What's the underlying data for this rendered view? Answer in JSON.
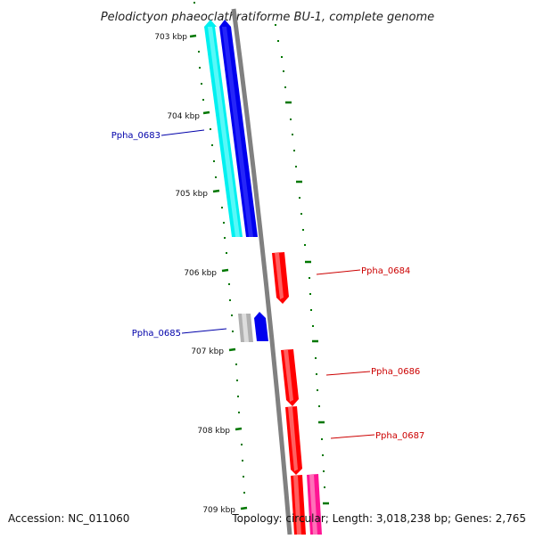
{
  "title": "Pelodictyon phaeoclathratiforme BU-1, complete genome",
  "footer": {
    "accession": "Accession: NC_011060",
    "topology": "Topology: circular; Length: 3,018,238 bp; Genes: 2,765"
  },
  "ticks": [
    "703 kbp",
    "704 kbp",
    "705 kbp",
    "706 kbp",
    "707 kbp",
    "708 kbp",
    "709 kbp"
  ],
  "genes": [
    {
      "label": "Ppha_0683",
      "strand": "minus",
      "color": "#0000ee"
    },
    {
      "label": "Ppha_0684",
      "strand": "plus",
      "color": "#ff0000"
    },
    {
      "label": "Ppha_0685",
      "strand": "minus",
      "color": "#0000ee"
    },
    {
      "label": "Ppha_0686",
      "strand": "plus",
      "color": "#ff0000"
    },
    {
      "label": "Ppha_0687",
      "strand": "plus",
      "color": "#ff0000"
    }
  ],
  "colors": {
    "backbone": "#808080",
    "tick": "#007700",
    "cds_minus": "#0000ee",
    "cds_plus": "#ff0000",
    "minus_feature": "#00f0f0",
    "plus_feature": "#ff1493",
    "gray_feature": "#b0b0b0"
  }
}
